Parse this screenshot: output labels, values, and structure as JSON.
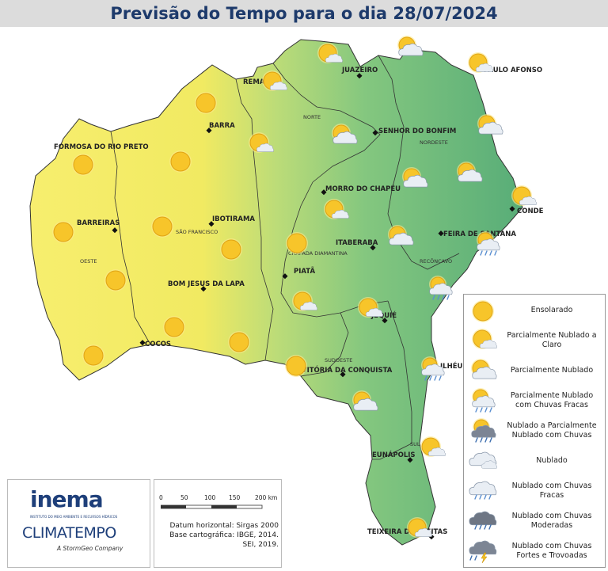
{
  "title": "Previsão do Tempo para o dia 28/07/2024",
  "cities": [
    {
      "name": "REMANSO"
    },
    {
      "name": "JUAZEIRO"
    },
    {
      "name": "PAULO AFONSO"
    },
    {
      "name": "BARRA"
    },
    {
      "name": "SENHOR DO BONFIM"
    },
    {
      "name": "FORMOSA DO RIO PRETO"
    },
    {
      "name": "MORRO DO CHAPÉU"
    },
    {
      "name": "CONDE"
    },
    {
      "name": "IBOTIRAMA"
    },
    {
      "name": "BARREIRAS"
    },
    {
      "name": "FEIRA DE SANTANA"
    },
    {
      "name": "ITABERABA"
    },
    {
      "name": "BOM JESUS DA LAPA"
    },
    {
      "name": "PIATÃ"
    },
    {
      "name": "JEQUIÉ"
    },
    {
      "name": "COCOS"
    },
    {
      "name": "VITÓRIA DA CONQUISTA"
    },
    {
      "name": "ILHÉUS"
    },
    {
      "name": "EUNÁPOLIS"
    },
    {
      "name": "TEIXEIRA DE FREITAS"
    }
  ],
  "regions": [
    {
      "name": "NORTE"
    },
    {
      "name": "NORDESTE"
    },
    {
      "name": "SÃO FRANCISCO"
    },
    {
      "name": "CHAPADA DIAMANTINA"
    },
    {
      "name": "OESTE"
    },
    {
      "name": "RECÔNCAVO"
    },
    {
      "name": "SUDOESTE"
    },
    {
      "name": "SUL"
    }
  ],
  "legend": [
    {
      "label": "Ensolarado",
      "icon": "sun-icon"
    },
    {
      "label": "Parcialmente Nublado a Claro",
      "icon": "sun-small-cloud-icon"
    },
    {
      "label": "Parcialmente Nublado",
      "icon": "sun-cloud-icon"
    },
    {
      "label": "Parcialmente Nublado com Chuvas Fracas",
      "icon": "sun-cloud-light-rain-icon"
    },
    {
      "label": "Nublado a Parcialmente Nublado com Chuvas",
      "icon": "sun-dark-cloud-rain-icon"
    },
    {
      "label": "Nublado",
      "icon": "cloud-icon"
    },
    {
      "label": "Nublado com Chuvas Fracas",
      "icon": "cloud-light-rain-icon"
    },
    {
      "label": "Nublado com Chuvas Moderadas",
      "icon": "dark-cloud-rain-icon"
    },
    {
      "label": "Nublado com Chuvas Fortes e Trovoadas",
      "icon": "storm-cloud-icon"
    }
  ],
  "logos": {
    "inema": "inema",
    "inema_sub": "INSTITUTO DO MEIO AMBIENTE E RECURSOS HÍDRICOS",
    "climatempo": "CLIMATEMPO",
    "climatempo_sub": "A StormGeo Company"
  },
  "scale": {
    "ticks": [
      "0",
      "50",
      "100",
      "150",
      "200 km"
    ],
    "datum_line1": "Datum horizontal: Sirgas 2000",
    "datum_line2": "Base cartográfica: IBGE, 2014.",
    "datum_line3": "SEI, 2019."
  },
  "colors": {
    "title_text": "#1d3a6b",
    "sun": "#f7c52a",
    "map_yellow": "#f4ec6a",
    "map_green": "#66b87a"
  }
}
